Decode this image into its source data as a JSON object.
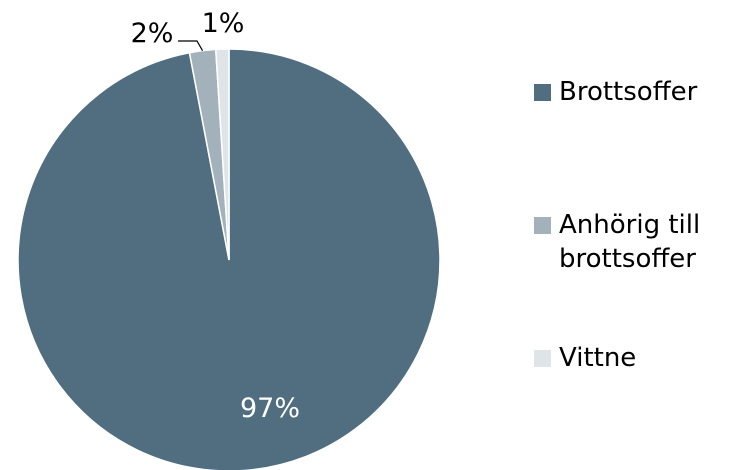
{
  "chart_data": {
    "type": "pie",
    "categories": [
      "Brottsoffer",
      "Anhörig till brottsoffer",
      "Vittne"
    ],
    "values": [
      97,
      2,
      1
    ],
    "value_labels": [
      "97%",
      "2%",
      "1%"
    ],
    "colors": [
      "#506e80",
      "#a3b1bb",
      "#dfe4e8"
    ],
    "legend": {
      "position": "right",
      "items": [
        {
          "lines": [
            "Brottsoffer"
          ]
        },
        {
          "lines": [
            "Anhörig till",
            "brottsoffer"
          ]
        },
        {
          "lines": [
            "Vittne"
          ]
        }
      ]
    },
    "title": "",
    "xlabel": "",
    "ylabel": ""
  }
}
